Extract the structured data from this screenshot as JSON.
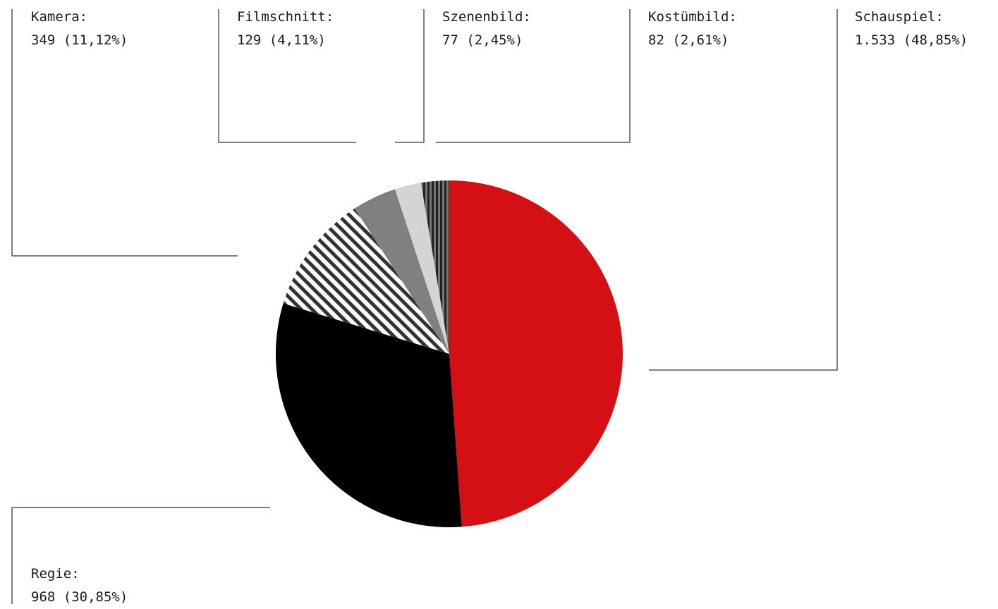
{
  "chart_data": {
    "type": "pie",
    "slices": [
      {
        "label": "Schauspiel",
        "value": 1533,
        "display": "1.533 (48,85%)",
        "fill": "#d41015",
        "pattern": "solid"
      },
      {
        "label": "Regie",
        "value": 968,
        "display": "968 (30,85%)",
        "fill": "#000000",
        "pattern": "solid"
      },
      {
        "label": "Kamera",
        "value": 349,
        "display": "349 (11,12%)",
        "fill": "#555555",
        "pattern": "diagonal-stripes"
      },
      {
        "label": "Filmschnitt",
        "value": 129,
        "display": "129 (4,11%)",
        "fill": "#808080",
        "pattern": "solid"
      },
      {
        "label": "Szenenbild",
        "value": 77,
        "display": "77 (2,45%)",
        "fill": "#d4d4d4",
        "pattern": "solid"
      },
      {
        "label": "Kostümbild",
        "value": 82,
        "display": "82 (2,61%)",
        "fill": "#444444",
        "pattern": "vertical-stripes"
      }
    ],
    "colors": {
      "accent": "#d41015",
      "leader_line": "#555555"
    }
  },
  "labels": {
    "kamera": {
      "name": "Kamera:",
      "value": "349 (11,12%)"
    },
    "filmschnitt": {
      "name": "Filmschnitt:",
      "value": "129 (4,11%)"
    },
    "szenenbild": {
      "name": "Szenenbild:",
      "value": "77 (2,45%)"
    },
    "kostuembild": {
      "name": "Kostümbild:",
      "value": "82 (2,61%)"
    },
    "schauspiel": {
      "name": "Schauspiel:",
      "value": "1.533 (48,85%)"
    },
    "regie": {
      "name": "Regie:",
      "value": "968 (30,85%)"
    }
  }
}
